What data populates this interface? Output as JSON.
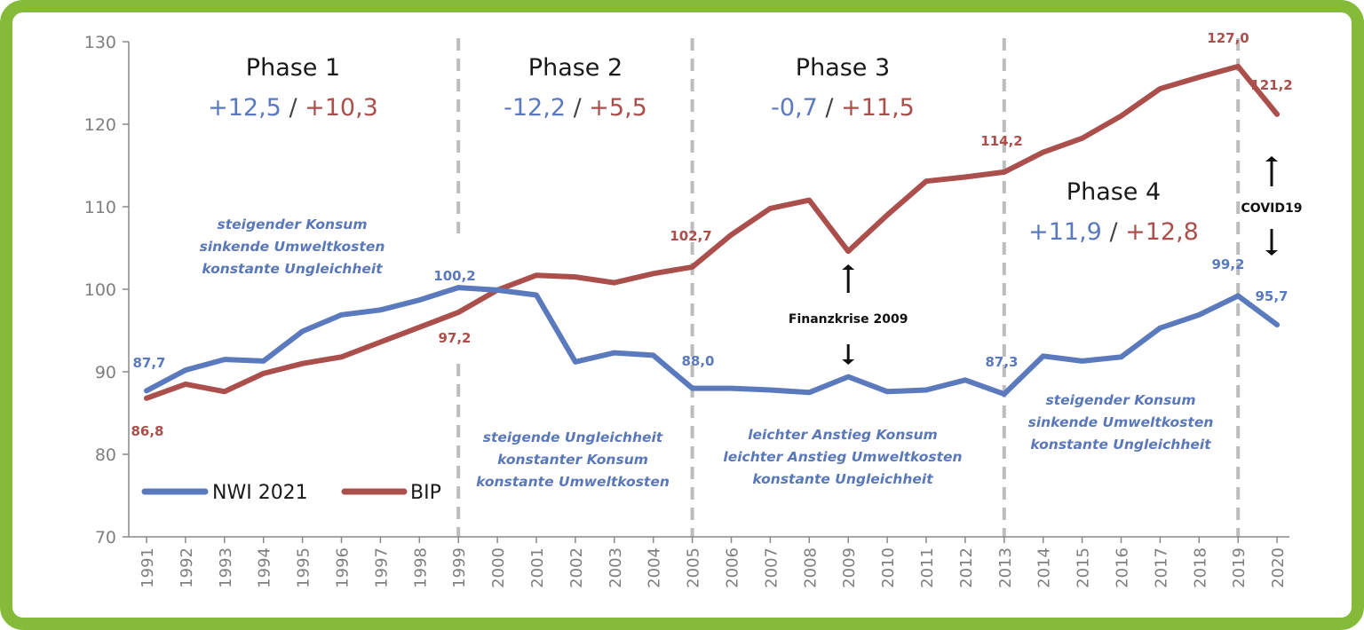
{
  "colors": {
    "nwi": "#5b79bd",
    "bip": "#ab4f4c",
    "frame": "#86bb3a",
    "phase_line": "#bdbdbd",
    "axis": "#888888"
  },
  "chart_data": {
    "type": "line",
    "x": [
      1991,
      1992,
      1993,
      1994,
      1995,
      1996,
      1997,
      1998,
      1999,
      2000,
      2001,
      2002,
      2003,
      2004,
      2005,
      2006,
      2007,
      2008,
      2009,
      2010,
      2011,
      2012,
      2013,
      2014,
      2015,
      2016,
      2017,
      2018,
      2019,
      2020
    ],
    "x_tick_labels": [
      "1991",
      "1992",
      "1993",
      "1994",
      "1995",
      "1996",
      "1997",
      "1998",
      "1999",
      "2000",
      "2001",
      "2002",
      "2003",
      "2004",
      "2005",
      "2006",
      "2007",
      "2008",
      "2009",
      "2010",
      "2011",
      "2012",
      "2013",
      "2014",
      "2015",
      "2016",
      "2017",
      "2018",
      "2019",
      "2020"
    ],
    "ylim": [
      70,
      130
    ],
    "y_ticks": [
      70,
      80,
      90,
      100,
      110,
      120,
      130
    ],
    "y_tick_labels": [
      "70",
      "80",
      "90",
      "100",
      "110",
      "120",
      "130"
    ],
    "grid": false,
    "series": [
      {
        "name": "NWI 2021",
        "color": "#5b79bd",
        "values": [
          87.7,
          90.2,
          91.5,
          91.3,
          94.9,
          96.9,
          97.5,
          98.7,
          100.2,
          99.9,
          99.3,
          91.2,
          92.3,
          92.0,
          88.0,
          88.0,
          87.8,
          87.5,
          89.4,
          87.6,
          87.8,
          89.0,
          87.3,
          91.9,
          91.3,
          91.8,
          95.3,
          96.9,
          99.2,
          95.7
        ]
      },
      {
        "name": "BIP",
        "color": "#ab4f4c",
        "values": [
          86.8,
          88.5,
          87.6,
          89.8,
          91.0,
          91.8,
          93.6,
          95.4,
          97.2,
          99.9,
          101.7,
          101.5,
          100.8,
          101.9,
          102.7,
          106.6,
          109.8,
          110.8,
          104.6,
          109.0,
          113.1,
          113.6,
          114.2,
          116.6,
          118.3,
          121.0,
          124.3,
          125.7,
          127.0,
          121.2
        ]
      }
    ],
    "phase_boundaries": [
      1999,
      2005,
      2013,
      2019
    ],
    "legend": {
      "placement": "bottom-left",
      "entries": [
        "NWI 2021",
        "BIP"
      ]
    },
    "phases": [
      {
        "title": "Phase 1",
        "nwi": "+12,5",
        "sep": " / ",
        "bip": "+10,3",
        "desc": [
          "steigender Konsum",
          "sinkende Umweltkosten",
          "konstante Ungleichheit"
        ]
      },
      {
        "title": "Phase 2",
        "nwi": "-12,2",
        "sep": " / ",
        "bip": "+5,5",
        "desc": [
          "steigende Ungleichheit",
          "konstanter Konsum",
          "konstante Umweltkosten"
        ]
      },
      {
        "title": "Phase 3",
        "nwi": "-0,7",
        "sep": " / ",
        "bip": "+11,5",
        "desc": [
          "leichter Anstieg Konsum",
          "leichter Anstieg Umweltkosten",
          "konstante Ungleichheit"
        ]
      },
      {
        "title": "Phase 4",
        "nwi": "+11,9",
        "sep": " / ",
        "bip": "+12,8",
        "desc": [
          "steigender Konsum",
          "sinkende Umweltkosten",
          "konstante Ungleichheit"
        ]
      }
    ],
    "data_labels": {
      "nwi": [
        {
          "year": 1991,
          "text": "87,7"
        },
        {
          "year": 1999,
          "text": "100,2"
        },
        {
          "year": 2005,
          "text": "88,0"
        },
        {
          "year": 2013,
          "text": "87,3"
        },
        {
          "year": 2019,
          "text": "99,2"
        },
        {
          "year": 2020,
          "text": "95,7"
        }
      ],
      "bip": [
        {
          "year": 1991,
          "text": "86,8"
        },
        {
          "year": 1999,
          "text": "97,2"
        },
        {
          "year": 2005,
          "text": "102,7"
        },
        {
          "year": 2013,
          "text": "114,2"
        },
        {
          "year": 2019,
          "text": "127,0"
        },
        {
          "year": 2020,
          "text": "121,2"
        }
      ]
    },
    "annotations": {
      "finanzkrise": "Finanzkrise 2009",
      "covid": "COVID19"
    }
  }
}
